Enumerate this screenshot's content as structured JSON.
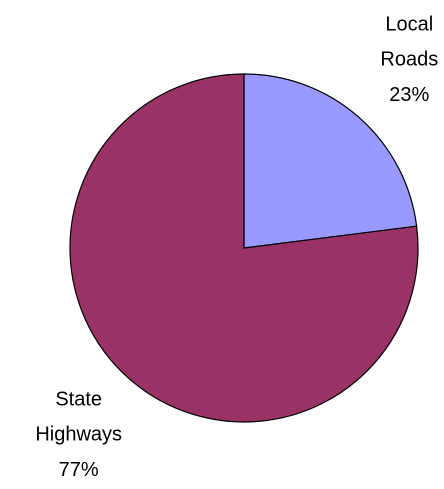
{
  "chart_data": {
    "type": "pie",
    "categories": [
      "Local Roads",
      "State Highways"
    ],
    "values": [
      23,
      77
    ],
    "value_labels": [
      "23%",
      "77%"
    ],
    "colors": [
      "#9999ff",
      "#993366"
    ]
  }
}
